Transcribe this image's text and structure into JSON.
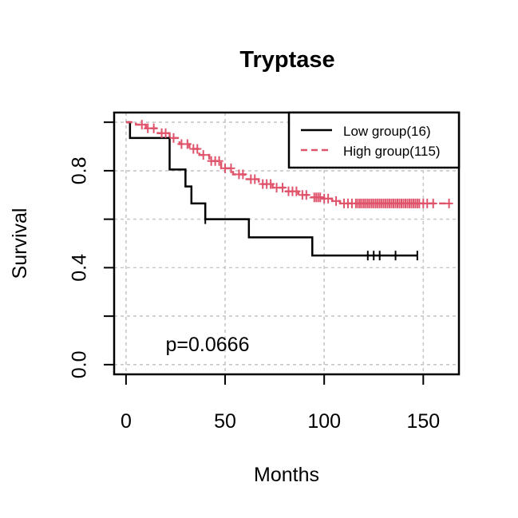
{
  "chart_data": {
    "type": "line",
    "title": "Tryptase",
    "xlabel": "Months",
    "ylabel": "Survival",
    "xlim": [
      -6,
      168
    ],
    "ylim": [
      -0.04,
      1.04
    ],
    "x_ticks": [
      0,
      50,
      100,
      150
    ],
    "x_tick_labels": [
      "0",
      "50",
      "100",
      "150"
    ],
    "y_ticks": [
      0,
      0.2,
      0.4,
      0.6,
      0.8,
      1.0
    ],
    "y_tick_labels": [
      {
        "value": 0,
        "label": "0.0"
      },
      {
        "value": 0.4,
        "label": "0.4"
      },
      {
        "value": 0.8,
        "label": "0.8"
      }
    ],
    "grid": true,
    "legend_position": "top-right",
    "annotation": "p=0.0666",
    "series": [
      {
        "name": "Low group(16)",
        "color": "#000000",
        "dash": "solid",
        "steps": [
          [
            0,
            1.0
          ],
          [
            2,
            0.935
          ],
          [
            22,
            0.87
          ],
          [
            22,
            0.805
          ],
          [
            30,
            0.805
          ],
          [
            30,
            0.735
          ],
          [
            33,
            0.735
          ],
          [
            33,
            0.665
          ],
          [
            40,
            0.665
          ],
          [
            40,
            0.6
          ],
          [
            62,
            0.6
          ],
          [
            62,
            0.525
          ],
          [
            94,
            0.525
          ],
          [
            94,
            0.45
          ],
          [
            147,
            0.45
          ]
        ],
        "censor_x": [
          40,
          122,
          125,
          128,
          136,
          147
        ],
        "censor_y": [
          0.6,
          0.45,
          0.45,
          0.45,
          0.45,
          0.45
        ]
      },
      {
        "name": "High group(115)",
        "color": "#DF536B",
        "dash": "dashed",
        "steps": [
          [
            0,
            1.0
          ],
          [
            5,
            0.99
          ],
          [
            10,
            0.975
          ],
          [
            16,
            0.955
          ],
          [
            22,
            0.935
          ],
          [
            27,
            0.91
          ],
          [
            32,
            0.89
          ],
          [
            37,
            0.865
          ],
          [
            42,
            0.84
          ],
          [
            48,
            0.81
          ],
          [
            54,
            0.785
          ],
          [
            60,
            0.765
          ],
          [
            67,
            0.745
          ],
          [
            74,
            0.73
          ],
          [
            80,
            0.715
          ],
          [
            87,
            0.7
          ],
          [
            93,
            0.69
          ],
          [
            99,
            0.685
          ],
          [
            104,
            0.675
          ],
          [
            108,
            0.665
          ],
          [
            163,
            0.665
          ]
        ],
        "censor_x": [
          8,
          11,
          14,
          18,
          20,
          24,
          28,
          31,
          34,
          36,
          39,
          43,
          45,
          47,
          50,
          53,
          57,
          59,
          63,
          65,
          69,
          71,
          73,
          76,
          79,
          82,
          84,
          86,
          89,
          91,
          95,
          96,
          97,
          98,
          100,
          102,
          106,
          110,
          112,
          114,
          116,
          117,
          118,
          119,
          120,
          121,
          122,
          123,
          124,
          125,
          126,
          127,
          128,
          129,
          130,
          131,
          132,
          133,
          134,
          135,
          136,
          137,
          138,
          139,
          140,
          141,
          142,
          143,
          144,
          145,
          146,
          147,
          148,
          150,
          152,
          155,
          163
        ],
        "censor_y": [
          0.99,
          0.975,
          0.975,
          0.955,
          0.955,
          0.935,
          0.91,
          0.91,
          0.89,
          0.89,
          0.865,
          0.84,
          0.84,
          0.84,
          0.81,
          0.81,
          0.785,
          0.785,
          0.765,
          0.765,
          0.745,
          0.745,
          0.745,
          0.73,
          0.73,
          0.715,
          0.715,
          0.715,
          0.7,
          0.7,
          0.69,
          0.69,
          0.69,
          0.69,
          0.685,
          0.685,
          0.675,
          0.665,
          0.665,
          0.665,
          0.665,
          0.665,
          0.665,
          0.665,
          0.665,
          0.665,
          0.665,
          0.665,
          0.665,
          0.665,
          0.665,
          0.665,
          0.665,
          0.665,
          0.665,
          0.665,
          0.665,
          0.665,
          0.665,
          0.665,
          0.665,
          0.665,
          0.665,
          0.665,
          0.665,
          0.665,
          0.665,
          0.665,
          0.665,
          0.665,
          0.665,
          0.665,
          0.665,
          0.665,
          0.665,
          0.665,
          0.665
        ]
      }
    ]
  }
}
